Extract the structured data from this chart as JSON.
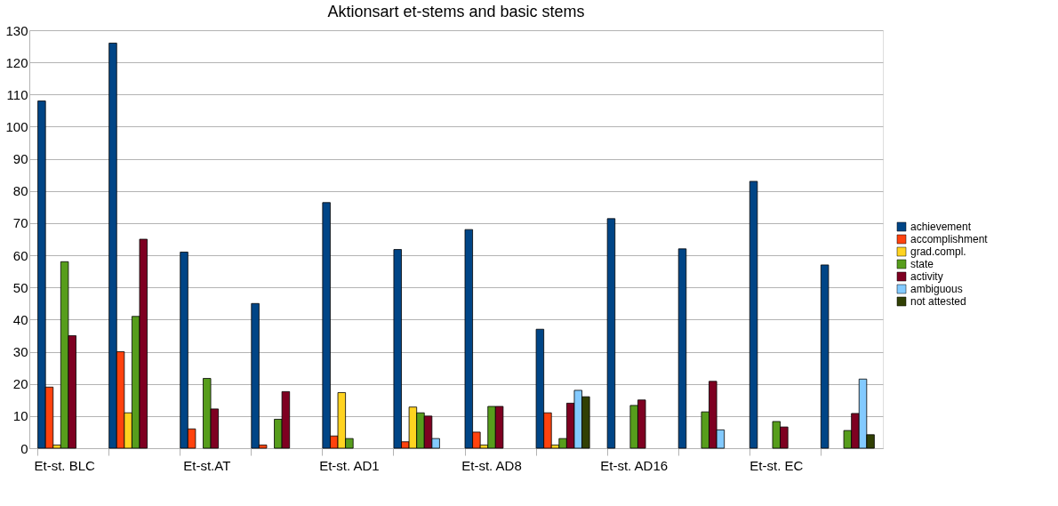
{
  "chart_data": {
    "type": "bar",
    "title": "Aktionsart et-stems and basic stems",
    "categories": [
      "Et-st. BLC",
      null,
      "Et-st.AT",
      null,
      "Et-st. AD1",
      null,
      "Et-st. AD8",
      null,
      "Et-st. AD16",
      null,
      "Et-st. EC",
      null
    ],
    "series": [
      {
        "name": "achievement",
        "color": "#004586",
        "values": [
          108,
          126,
          61,
          45,
          76.4,
          61.8,
          68,
          37,
          71.4,
          62,
          83,
          57
        ]
      },
      {
        "name": "accomplishment",
        "color": "#ff420e",
        "values": [
          19,
          30,
          6,
          1,
          3.8,
          2,
          5,
          11,
          null,
          null,
          null,
          null
        ]
      },
      {
        "name": "grad.compl.",
        "color": "#ffd320",
        "values": [
          1,
          11,
          null,
          null,
          17.3,
          12.8,
          1,
          1,
          null,
          null,
          null,
          null
        ]
      },
      {
        "name": "state",
        "color": "#579d1c",
        "values": [
          58,
          41,
          21.7,
          9,
          3,
          11,
          13,
          3,
          13.3,
          11.3,
          8.3,
          5.5
        ]
      },
      {
        "name": "activity",
        "color": "#7e0021",
        "values": [
          35,
          65,
          12.2,
          17.6,
          null,
          10,
          13,
          14,
          15,
          20.8,
          6.6,
          10.8
        ]
      },
      {
        "name": "ambiguous",
        "color": "#83caff",
        "values": [
          null,
          null,
          null,
          null,
          null,
          3,
          null,
          18,
          null,
          5.7,
          null,
          21.5
        ]
      },
      {
        "name": "not attested",
        "color": "#314004",
        "values": [
          null,
          null,
          null,
          null,
          null,
          null,
          null,
          16,
          null,
          null,
          null,
          4.2
        ]
      }
    ],
    "ylim": [
      0,
      130
    ],
    "yticks": [
      0,
      10,
      20,
      30,
      40,
      50,
      60,
      70,
      80,
      90,
      100,
      110,
      120,
      130
    ],
    "grid": "y",
    "legend": "right"
  }
}
